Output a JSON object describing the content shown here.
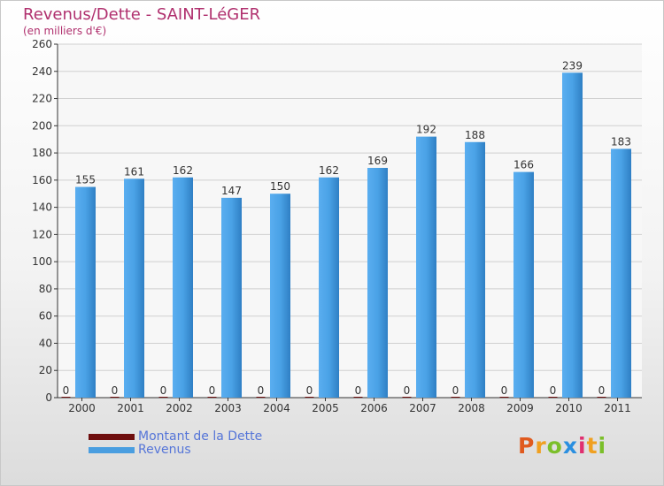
{
  "chart_data": {
    "type": "bar",
    "title": "Revenus/Dette - SAINT-LéGER",
    "subtitle": "(en milliers d'€)",
    "categories": [
      "2000",
      "2001",
      "2002",
      "2003",
      "2004",
      "2005",
      "2006",
      "2007",
      "2008",
      "2009",
      "2010",
      "2011"
    ],
    "series": [
      {
        "name": "Montant de la Dette",
        "values": [
          0,
          0,
          0,
          0,
          0,
          0,
          0,
          0,
          0,
          0,
          0,
          0
        ],
        "color": "#6e0e0e"
      },
      {
        "name": "Revenus",
        "values": [
          155,
          161,
          162,
          147,
          150,
          162,
          169,
          192,
          188,
          166,
          239,
          183
        ],
        "color": "#4a9ee0"
      }
    ],
    "ylim": [
      0,
      260
    ],
    "yticks": [
      0,
      20,
      40,
      60,
      80,
      100,
      120,
      140,
      160,
      180,
      200,
      220,
      240,
      260
    ],
    "grid": true,
    "legend_position": "bottom-left"
  },
  "branding": {
    "logo_letters": [
      "P",
      "r",
      "o",
      "x",
      "i",
      "t",
      "i"
    ],
    "logo_colors": [
      "#e05a1e",
      "#f0a020",
      "#7bbf2a",
      "#2a8fe0",
      "#e03070",
      "#f0a020",
      "#7bbf2a"
    ]
  }
}
